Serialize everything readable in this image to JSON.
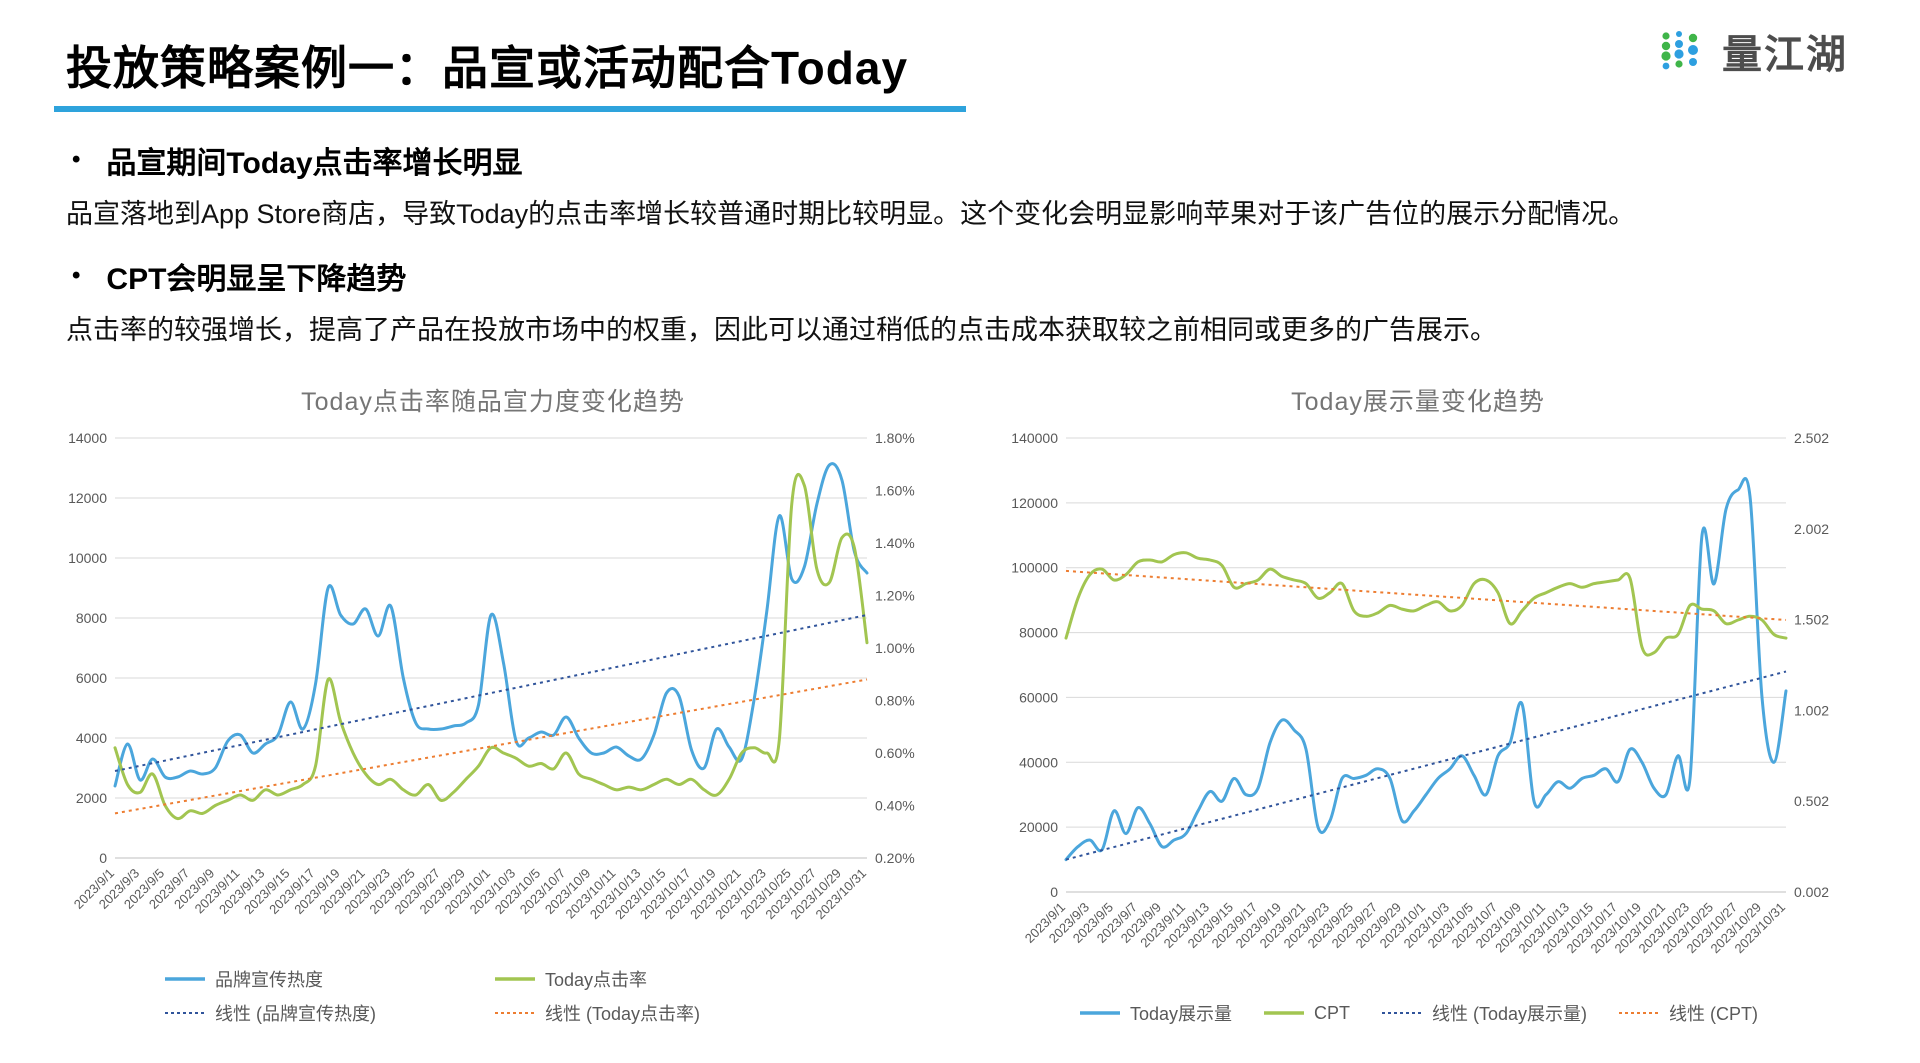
{
  "header": {
    "title": "投放策略案例一：品宣或活动配合Today",
    "logo_text": "量江湖",
    "accent_color": "#2EA3DC"
  },
  "ui": {
    "bullet_char": "•"
  },
  "bullets": [
    {
      "heading": "品宣期间Today点击率增长明显",
      "body": "品宣落地到App Store商店，导致Today的点击率增长较普通时期比较明显。这个变化会明显影响苹果对于该广告位的展示分配情况。"
    },
    {
      "heading": "CPT会明显呈下降趋势",
      "body": "点击率的较强增长，提高了产品在投放市场中的权重，因此可以通过稍低的点击成本获取较之前相同或更多的广告展示。"
    }
  ],
  "chart_data": [
    {
      "type": "line",
      "title": "Today点击率随品宣力度变化趋势",
      "grid": true,
      "legend_position": "bottom",
      "legend_columns": 2,
      "n_points": 61,
      "x_tick_labels": [
        "2023/9/1",
        "2023/9/3",
        "2023/9/5",
        "2023/9/7",
        "2023/9/9",
        "2023/9/11",
        "2023/9/13",
        "2023/9/15",
        "2023/9/17",
        "2023/9/19",
        "2023/9/21",
        "2023/9/23",
        "2023/9/25",
        "2023/9/27",
        "2023/9/29",
        "2023/10/1",
        "2023/10/3",
        "2023/10/5",
        "2023/10/7",
        "2023/10/9",
        "2023/10/11",
        "2023/10/13",
        "2023/10/15",
        "2023/10/17",
        "2023/10/19",
        "2023/10/21",
        "2023/10/23",
        "2023/10/25",
        "2023/10/27",
        "2023/10/29",
        "2023/10/31"
      ],
      "left_axis": {
        "min": 0,
        "max": 14000,
        "tick_values": [
          0,
          2000,
          4000,
          6000,
          8000,
          10000,
          12000,
          14000
        ],
        "tick_labels": [
          "0",
          "2000",
          "4000",
          "6000",
          "8000",
          "10000",
          "12000",
          "14000"
        ]
      },
      "right_axis": {
        "min": 0.2,
        "max": 1.8,
        "tick_values": [
          0.2,
          0.4,
          0.6,
          0.8,
          1.0,
          1.2,
          1.4,
          1.6,
          1.8
        ],
        "tick_labels": [
          "0.20%",
          "0.40%",
          "0.60%",
          "0.80%",
          "1.00%",
          "1.20%",
          "1.40%",
          "1.60%",
          "1.80%"
        ]
      },
      "series": [
        {
          "name": "品牌宣传热度",
          "axis": "left",
          "color": "#4BA6DC",
          "style": "solid",
          "values": [
            2400,
            3800,
            2600,
            3300,
            2700,
            2700,
            2900,
            2800,
            3000,
            3900,
            4100,
            3500,
            3800,
            4100,
            5200,
            4300,
            5800,
            9000,
            8100,
            7800,
            8300,
            7400,
            8400,
            6000,
            4500,
            4300,
            4300,
            4400,
            4500,
            5100,
            8100,
            6500,
            3900,
            4000,
            4200,
            4100,
            4700,
            4000,
            3500,
            3500,
            3700,
            3400,
            3300,
            4100,
            5500,
            5400,
            3600,
            3000,
            4300,
            3700,
            3300,
            5300,
            8200,
            11400,
            9300,
            9700,
            11800,
            13100,
            12600,
            10200,
            9500
          ]
        },
        {
          "name": "Today点击率",
          "axis": "right",
          "color": "#A2C551",
          "style": "solid",
          "values": [
            0.62,
            0.48,
            0.45,
            0.52,
            0.4,
            0.35,
            0.38,
            0.37,
            0.4,
            0.42,
            0.44,
            0.42,
            0.46,
            0.44,
            0.46,
            0.48,
            0.55,
            0.88,
            0.72,
            0.6,
            0.52,
            0.48,
            0.5,
            0.46,
            0.44,
            0.48,
            0.42,
            0.45,
            0.5,
            0.55,
            0.62,
            0.6,
            0.58,
            0.55,
            0.56,
            0.54,
            0.6,
            0.52,
            0.5,
            0.48,
            0.46,
            0.47,
            0.46,
            0.48,
            0.5,
            0.48,
            0.5,
            0.46,
            0.44,
            0.5,
            0.6,
            0.62,
            0.6,
            0.65,
            1.55,
            1.62,
            1.3,
            1.25,
            1.42,
            1.38,
            1.02
          ]
        },
        {
          "name": "线性 (品牌宣传热度)",
          "axis": "left",
          "color": "#30549B",
          "style": "dotted",
          "trend": [
            2900,
            8100
          ]
        },
        {
          "name": "线性 (Today点击率)",
          "axis": "right",
          "color": "#ED7D31",
          "style": "dotted",
          "trend": [
            0.37,
            0.88
          ]
        }
      ]
    },
    {
      "type": "line",
      "title": "Today展示量变化趋势",
      "grid": true,
      "legend_position": "bottom",
      "legend_columns": 4,
      "n_points": 61,
      "x_tick_labels": [
        "2023/9/1",
        "2023/9/3",
        "2023/9/5",
        "2023/9/7",
        "2023/9/9",
        "2023/9/11",
        "2023/9/13",
        "2023/9/15",
        "2023/9/17",
        "2023/9/19",
        "2023/9/21",
        "2023/9/23",
        "2023/9/25",
        "2023/9/27",
        "2023/9/29",
        "2023/10/1",
        "2023/10/3",
        "2023/10/5",
        "2023/10/7",
        "2023/10/9",
        "2023/10/11",
        "2023/10/13",
        "2023/10/15",
        "2023/10/17",
        "2023/10/19",
        "2023/10/21",
        "2023/10/23",
        "2023/10/25",
        "2023/10/27",
        "2023/10/29",
        "2023/10/31"
      ],
      "left_axis": {
        "min": 0,
        "max": 140000,
        "tick_values": [
          0,
          20000,
          40000,
          60000,
          80000,
          100000,
          120000,
          140000
        ],
        "tick_labels": [
          "0",
          "20000",
          "40000",
          "60000",
          "80000",
          "100000",
          "120000",
          "140000"
        ]
      },
      "right_axis": {
        "min": 0.002,
        "max": 2.502,
        "tick_values": [
          0.002,
          0.502,
          1.002,
          1.502,
          2.002,
          2.502
        ],
        "tick_labels": [
          "0.002",
          "0.502",
          "1.002",
          "1.502",
          "2.002",
          "2.502"
        ]
      },
      "series": [
        {
          "name": "Today展示量",
          "axis": "left",
          "color": "#4BA6DC",
          "style": "solid",
          "values": [
            10000,
            14000,
            16000,
            13000,
            25000,
            18000,
            26000,
            21000,
            14000,
            16000,
            18000,
            25000,
            31000,
            28000,
            35000,
            30000,
            32000,
            46000,
            53000,
            50000,
            44000,
            20000,
            22000,
            35000,
            35000,
            36000,
            38000,
            35000,
            22000,
            25000,
            30000,
            35000,
            38000,
            42000,
            36000,
            30000,
            42000,
            46000,
            58000,
            28000,
            30000,
            34000,
            32000,
            35000,
            36000,
            38000,
            34000,
            44000,
            40000,
            32000,
            30000,
            42000,
            35000,
            110000,
            95000,
            118000,
            124000,
            122000,
            60000,
            40000,
            62000
          ]
        },
        {
          "name": "CPT",
          "axis": "right",
          "color": "#A2C551",
          "style": "solid",
          "values": [
            1.4,
            1.62,
            1.75,
            1.78,
            1.72,
            1.75,
            1.82,
            1.83,
            1.82,
            1.86,
            1.87,
            1.84,
            1.83,
            1.8,
            1.68,
            1.7,
            1.72,
            1.78,
            1.74,
            1.72,
            1.7,
            1.62,
            1.65,
            1.7,
            1.55,
            1.52,
            1.54,
            1.58,
            1.56,
            1.55,
            1.58,
            1.6,
            1.55,
            1.58,
            1.7,
            1.72,
            1.65,
            1.48,
            1.55,
            1.62,
            1.65,
            1.68,
            1.7,
            1.68,
            1.7,
            1.71,
            1.72,
            1.73,
            1.35,
            1.32,
            1.4,
            1.42,
            1.58,
            1.56,
            1.55,
            1.48,
            1.5,
            1.52,
            1.5,
            1.42,
            1.4
          ]
        },
        {
          "name": "线性 (Today展示量)",
          "axis": "left",
          "color": "#30549B",
          "style": "dotted",
          "trend": [
            10000,
            68000
          ]
        },
        {
          "name": "线性 (CPT)",
          "axis": "right",
          "color": "#ED7D31",
          "style": "dotted",
          "trend": [
            1.77,
            1.5
          ]
        }
      ]
    }
  ]
}
